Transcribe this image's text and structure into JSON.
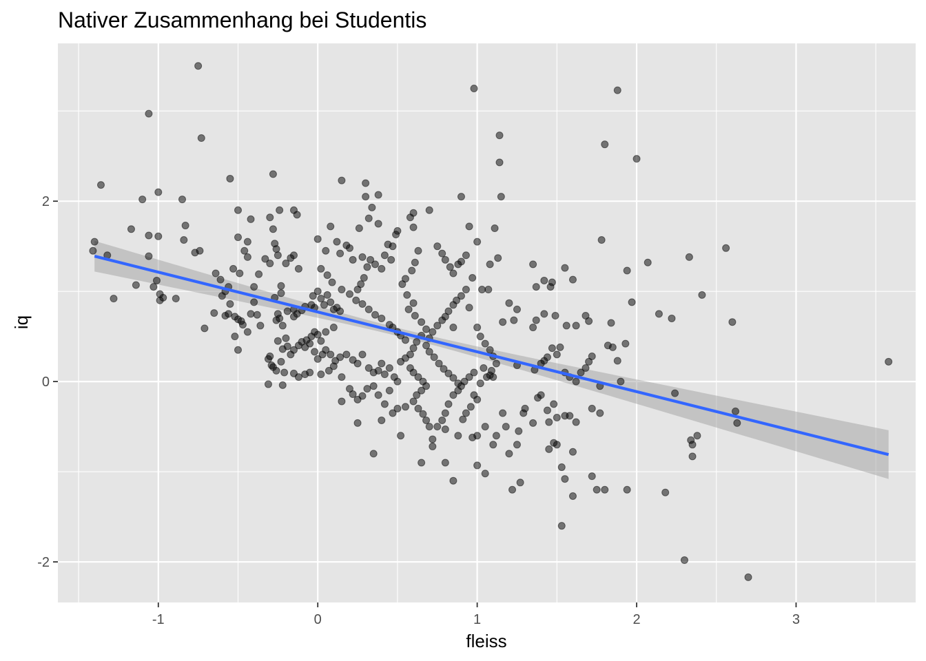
{
  "chart_data": {
    "type": "scatter",
    "title": "Nativer Zusammenhang bei Studentis",
    "xlabel": "fleiss",
    "ylabel": "iq",
    "xlim": [
      -1.63,
      3.75
    ],
    "ylim": [
      -2.45,
      3.75
    ],
    "x_ticks": [
      -1,
      0,
      1,
      2,
      3
    ],
    "x_tick_labels": [
      "-1",
      "0",
      "1",
      "2",
      "3"
    ],
    "y_ticks": [
      -2,
      0,
      2
    ],
    "y_tick_labels": [
      "-2",
      "0",
      "2"
    ],
    "grid": true,
    "legend": "none",
    "colors": {
      "panel_background": "#e5e5e5",
      "grid": "#ffffff",
      "points": "#000000",
      "point_opacity": 0.5,
      "fit_line": "#3366ff",
      "confidence_band": "#999999"
    },
    "fit": {
      "method": "linear",
      "x_range": [
        -1.4,
        3.58
      ],
      "y_start": 1.39,
      "y_end": -0.81,
      "band_halfwidth_start": 0.17,
      "band_halfwidth_end": 0.27,
      "band_halfwidth_min": 0.045,
      "band_center_x": 0.55
    },
    "points": [
      [
        -0.75,
        3.5
      ],
      [
        -1.06,
        2.97
      ],
      [
        -0.73,
        2.7
      ],
      [
        -1.36,
        2.18
      ],
      [
        -1.1,
        2.02
      ],
      [
        -1.0,
        2.1
      ],
      [
        -0.85,
        2.02
      ],
      [
        -1.17,
        1.69
      ],
      [
        -1.06,
        1.62
      ],
      [
        -1.0,
        1.61
      ],
      [
        -0.83,
        1.73
      ],
      [
        -0.84,
        1.57
      ],
      [
        -1.4,
        1.55
      ],
      [
        -1.41,
        1.45
      ],
      [
        -1.32,
        1.4
      ],
      [
        -1.06,
        1.39
      ],
      [
        -0.77,
        1.43
      ],
      [
        -0.74,
        1.45
      ],
      [
        -1.14,
        1.07
      ],
      [
        -1.03,
        1.05
      ],
      [
        -1.01,
        1.12
      ],
      [
        -0.99,
        0.97
      ],
      [
        -0.99,
        0.9
      ],
      [
        -0.97,
        0.93
      ],
      [
        -0.89,
        0.92
      ],
      [
        -1.28,
        0.92
      ],
      [
        -0.71,
        0.59
      ],
      [
        -0.65,
        0.76
      ],
      [
        -0.6,
        0.95
      ],
      [
        -0.58,
        0.73
      ],
      [
        -0.55,
        0.86
      ],
      [
        -0.56,
        0.75
      ],
      [
        -0.52,
        0.72
      ],
      [
        -0.52,
        0.5
      ],
      [
        -0.5,
        0.69
      ],
      [
        -0.48,
        0.67
      ],
      [
        -0.47,
        0.63
      ],
      [
        -0.44,
        0.55
      ],
      [
        -0.42,
        0.75
      ],
      [
        -0.4,
        0.88
      ],
      [
        -0.38,
        0.74
      ],
      [
        -0.36,
        0.62
      ],
      [
        -0.5,
        0.35
      ],
      [
        -0.56,
        1.05
      ],
      [
        -0.53,
        1.25
      ],
      [
        -0.49,
        1.2
      ],
      [
        -0.46,
        1.45
      ],
      [
        -0.44,
        1.38
      ],
      [
        -0.44,
        1.55
      ],
      [
        -0.42,
        1.8
      ],
      [
        -0.5,
        1.9
      ],
      [
        -0.5,
        1.6
      ],
      [
        -0.55,
        2.25
      ],
      [
        -0.61,
        1.13
      ],
      [
        -0.64,
        1.2
      ],
      [
        -0.58,
        1.0
      ],
      [
        -0.4,
        1.05
      ],
      [
        -0.37,
        1.19
      ],
      [
        -0.33,
        1.36
      ],
      [
        -0.3,
        1.31
      ],
      [
        -0.3,
        1.82
      ],
      [
        -0.28,
        1.69
      ],
      [
        -0.27,
        1.53
      ],
      [
        -0.26,
        1.47
      ],
      [
        -0.25,
        1.4
      ],
      [
        -0.28,
        2.3
      ],
      [
        -0.24,
        1.9
      ],
      [
        -0.15,
        1.9
      ],
      [
        -0.13,
        1.85
      ],
      [
        -0.2,
        1.31
      ],
      [
        -0.17,
        1.37
      ],
      [
        -0.15,
        1.4
      ],
      [
        -0.12,
        1.25
      ],
      [
        -0.23,
        0.98
      ],
      [
        -0.23,
        1.06
      ],
      [
        -0.27,
        0.93
      ],
      [
        -0.25,
        0.75
      ],
      [
        -0.24,
        0.7
      ],
      [
        -0.26,
        0.68
      ],
      [
        -0.22,
        0.62
      ],
      [
        -0.19,
        0.78
      ],
      [
        -0.15,
        0.8
      ],
      [
        -0.15,
        0.72
      ],
      [
        -0.13,
        0.75
      ],
      [
        -0.1,
        0.79
      ],
      [
        -0.08,
        0.83
      ],
      [
        -0.04,
        0.85
      ],
      [
        -0.02,
        0.82
      ],
      [
        -0.25,
        0.45
      ],
      [
        -0.22,
        0.36
      ],
      [
        -0.2,
        0.48
      ],
      [
        -0.19,
        0.39
      ],
      [
        -0.17,
        0.3
      ],
      [
        -0.15,
        0.35
      ],
      [
        -0.12,
        0.4
      ],
      [
        -0.1,
        0.44
      ],
      [
        -0.08,
        0.38
      ],
      [
        -0.07,
        0.46
      ],
      [
        -0.05,
        0.42
      ],
      [
        -0.04,
        0.5
      ],
      [
        -0.02,
        0.55
      ],
      [
        0.0,
        0.52
      ],
      [
        -0.3,
        0.28
      ],
      [
        -0.29,
        0.18
      ],
      [
        -0.31,
        0.25
      ],
      [
        -0.28,
        0.16
      ],
      [
        -0.26,
        0.12
      ],
      [
        -0.23,
        0.22
      ],
      [
        -0.21,
        0.1
      ],
      [
        -0.15,
        0.09
      ],
      [
        -0.12,
        0.05
      ],
      [
        -0.08,
        0.08
      ],
      [
        -0.31,
        -0.03
      ],
      [
        -0.22,
        -0.04
      ],
      [
        -0.03,
        0.95
      ],
      [
        0.0,
        1.0
      ],
      [
        0.02,
        0.92
      ],
      [
        0.04,
        0.85
      ],
      [
        0.06,
        0.96
      ],
      [
        0.08,
        0.88
      ],
      [
        0.1,
        0.8
      ],
      [
        0.12,
        0.82
      ],
      [
        0.14,
        0.78
      ],
      [
        0.0,
        1.58
      ],
      [
        0.05,
        1.45
      ],
      [
        0.08,
        1.72
      ],
      [
        0.12,
        1.55
      ],
      [
        0.14,
        1.42
      ],
      [
        0.18,
        1.51
      ],
      [
        0.2,
        1.48
      ],
      [
        0.22,
        1.35
      ],
      [
        0.02,
        1.25
      ],
      [
        0.06,
        1.18
      ],
      [
        0.09,
        1.1
      ],
      [
        0.15,
        1.02
      ],
      [
        0.2,
        0.97
      ],
      [
        0.24,
        0.9
      ],
      [
        0.28,
        0.86
      ],
      [
        0.32,
        0.8
      ],
      [
        0.36,
        0.74
      ],
      [
        0.4,
        0.7
      ],
      [
        0.15,
        2.23
      ],
      [
        0.3,
        2.2
      ],
      [
        0.38,
        2.07
      ],
      [
        0.3,
        2.05
      ],
      [
        0.34,
        1.93
      ],
      [
        0.32,
        1.81
      ],
      [
        0.38,
        1.75
      ],
      [
        0.26,
        1.7
      ],
      [
        0.28,
        1.38
      ],
      [
        0.36,
        1.3
      ],
      [
        0.4,
        1.25
      ],
      [
        0.42,
        1.4
      ],
      [
        0.44,
        1.52
      ],
      [
        0.47,
        1.5
      ],
      [
        0.49,
        1.63
      ],
      [
        0.5,
        1.67
      ],
      [
        0.46,
        1.35
      ],
      [
        0.33,
        1.35
      ],
      [
        0.31,
        1.27
      ],
      [
        0.29,
        1.15
      ],
      [
        0.27,
        1.08
      ],
      [
        0.25,
        1.02
      ],
      [
        0.45,
        0.63
      ],
      [
        0.47,
        0.6
      ],
      [
        0.5,
        0.55
      ],
      [
        0.52,
        0.51
      ],
      [
        0.55,
        0.46
      ],
      [
        0.1,
        0.6
      ],
      [
        0.05,
        0.55
      ],
      [
        0.02,
        0.45
      ],
      [
        -0.02,
        0.33
      ],
      [
        0.0,
        0.25
      ],
      [
        0.03,
        0.3
      ],
      [
        0.05,
        0.35
      ],
      [
        0.08,
        0.3
      ],
      [
        0.11,
        0.23
      ],
      [
        0.14,
        0.27
      ],
      [
        0.18,
        0.3
      ],
      [
        0.22,
        0.24
      ],
      [
        0.25,
        0.2
      ],
      [
        0.28,
        0.3
      ],
      [
        0.32,
        0.15
      ],
      [
        0.35,
        0.1
      ],
      [
        0.38,
        0.12
      ],
      [
        0.4,
        0.2
      ],
      [
        0.42,
        0.08
      ],
      [
        0.45,
        0.15
      ],
      [
        0.48,
        0.05
      ],
      [
        0.5,
        0.0
      ],
      [
        -0.05,
        0.1
      ],
      [
        0.02,
        0.08
      ],
      [
        0.07,
        0.12
      ],
      [
        0.1,
        0.17
      ],
      [
        0.15,
        0.05
      ],
      [
        0.2,
        -0.08
      ],
      [
        0.22,
        -0.14
      ],
      [
        0.25,
        -0.2
      ],
      [
        0.28,
        -0.16
      ],
      [
        0.31,
        -0.08
      ],
      [
        0.35,
        -0.05
      ],
      [
        0.38,
        -0.15
      ],
      [
        0.42,
        -0.25
      ],
      [
        0.45,
        -0.1
      ],
      [
        0.47,
        -0.35
      ],
      [
        0.5,
        -0.3
      ],
      [
        0.15,
        -0.22
      ],
      [
        0.25,
        -0.46
      ],
      [
        0.4,
        -0.43
      ],
      [
        0.52,
        -0.6
      ],
      [
        0.55,
        -0.28
      ],
      [
        0.35,
        -0.8
      ],
      [
        0.58,
        1.82
      ],
      [
        0.6,
        1.87
      ],
      [
        0.6,
        1.71
      ],
      [
        0.63,
        1.45
      ],
      [
        0.61,
        1.32
      ],
      [
        0.59,
        1.23
      ],
      [
        0.55,
        1.14
      ],
      [
        0.53,
        1.08
      ],
      [
        0.56,
        0.96
      ],
      [
        0.6,
        0.87
      ],
      [
        0.57,
        0.8
      ],
      [
        0.61,
        0.73
      ],
      [
        0.65,
        0.66
      ],
      [
        0.68,
        0.58
      ],
      [
        0.65,
        0.51
      ],
      [
        0.62,
        0.44
      ],
      [
        0.6,
        0.37
      ],
      [
        0.58,
        0.3
      ],
      [
        0.55,
        0.26
      ],
      [
        0.52,
        0.22
      ],
      [
        0.58,
        0.15
      ],
      [
        0.6,
        0.1
      ],
      [
        0.63,
        0.05
      ],
      [
        0.66,
        0.0
      ],
      [
        0.68,
        -0.05
      ],
      [
        0.65,
        -0.1
      ],
      [
        0.62,
        -0.15
      ],
      [
        0.6,
        -0.22
      ],
      [
        0.63,
        -0.3
      ],
      [
        0.66,
        -0.36
      ],
      [
        0.68,
        -0.43
      ],
      [
        0.7,
        -0.5
      ],
      [
        0.72,
        -0.64
      ],
      [
        0.75,
        -0.5
      ],
      [
        0.78,
        -0.43
      ],
      [
        0.8,
        -0.35
      ],
      [
        0.82,
        -0.25
      ],
      [
        0.85,
        -0.15
      ],
      [
        0.88,
        -0.1
      ],
      [
        0.9,
        -0.05
      ],
      [
        0.92,
        0.0
      ],
      [
        0.95,
        0.05
      ],
      [
        0.98,
        0.1
      ],
      [
        0.7,
        1.9
      ],
      [
        0.75,
        1.5
      ],
      [
        0.78,
        1.42
      ],
      [
        0.8,
        1.35
      ],
      [
        0.83,
        1.27
      ],
      [
        0.85,
        1.2
      ],
      [
        0.88,
        1.3
      ],
      [
        0.9,
        1.33
      ],
      [
        0.93,
        1.4
      ],
      [
        0.95,
        1.72
      ],
      [
        1.0,
        1.55
      ],
      [
        0.97,
        1.15
      ],
      [
        0.93,
        1.02
      ],
      [
        0.9,
        0.95
      ],
      [
        0.87,
        0.9
      ],
      [
        0.85,
        0.85
      ],
      [
        0.82,
        0.78
      ],
      [
        0.8,
        0.72
      ],
      [
        0.78,
        0.68
      ],
      [
        0.75,
        0.62
      ],
      [
        0.72,
        0.55
      ],
      [
        0.7,
        0.48
      ],
      [
        0.68,
        0.4
      ],
      [
        0.7,
        0.33
      ],
      [
        0.73,
        0.27
      ],
      [
        0.76,
        0.2
      ],
      [
        0.79,
        0.14
      ],
      [
        0.82,
        0.09
      ],
      [
        0.85,
        0.04
      ],
      [
        0.88,
        -0.02
      ],
      [
        0.85,
        0.6
      ],
      [
        0.95,
        0.82
      ],
      [
        0.98,
        3.25
      ],
      [
        0.9,
        2.05
      ],
      [
        1.08,
        1.3
      ],
      [
        1.13,
        1.37
      ],
      [
        1.11,
        1.7
      ],
      [
        1.15,
        2.05
      ],
      [
        1.14,
        2.43
      ],
      [
        1.14,
        2.73
      ],
      [
        1.03,
        1.02
      ],
      [
        1.07,
        1.02
      ],
      [
        1.16,
        0.66
      ],
      [
        1.0,
        0.6
      ],
      [
        1.02,
        0.5
      ],
      [
        1.05,
        0.42
      ],
      [
        1.08,
        0.35
      ],
      [
        1.1,
        0.28
      ],
      [
        1.12,
        0.2
      ],
      [
        1.09,
        0.12
      ],
      [
        1.06,
        0.05
      ],
      [
        1.02,
        -0.02
      ],
      [
        1.04,
        0.15
      ],
      [
        1.08,
        0.07
      ],
      [
        0.98,
        -0.15
      ],
      [
        1.0,
        -0.2
      ],
      [
        0.96,
        -0.28
      ],
      [
        0.93,
        -0.35
      ],
      [
        0.91,
        -0.42
      ],
      [
        1.05,
        -0.5
      ],
      [
        1.0,
        -0.6
      ],
      [
        0.97,
        -0.62
      ],
      [
        0.88,
        -0.6
      ],
      [
        0.8,
        -0.53
      ],
      [
        0.72,
        -0.72
      ],
      [
        0.65,
        -0.9
      ],
      [
        0.8,
        -0.9
      ],
      [
        0.85,
        -1.1
      ],
      [
        1.0,
        -0.93
      ],
      [
        1.1,
        -0.7
      ],
      [
        1.05,
        -1.02
      ],
      [
        1.12,
        -0.6
      ],
      [
        1.16,
        -0.35
      ],
      [
        1.18,
        -0.5
      ],
      [
        1.2,
        -0.8
      ],
      [
        1.22,
        -1.2
      ],
      [
        1.27,
        -1.12
      ],
      [
        1.25,
        -0.7
      ],
      [
        1.26,
        -0.55
      ],
      [
        1.29,
        -0.35
      ],
      [
        1.3,
        -0.3
      ],
      [
        1.35,
        -0.46
      ],
      [
        1.38,
        -0.18
      ],
      [
        1.4,
        -0.15
      ],
      [
        1.44,
        -0.32
      ],
      [
        1.45,
        -0.45
      ],
      [
        1.48,
        -0.25
      ],
      [
        1.5,
        -0.4
      ],
      [
        1.53,
        -0.95
      ],
      [
        1.45,
        -0.75
      ],
      [
        1.48,
        -0.68
      ],
      [
        1.5,
        -0.7
      ],
      [
        1.55,
        -1.08
      ],
      [
        1.53,
        -1.6
      ],
      [
        1.6,
        -1.27
      ],
      [
        1.55,
        -0.38
      ],
      [
        1.58,
        -0.38
      ],
      [
        1.62,
        -0.45
      ],
      [
        1.6,
        -0.78
      ],
      [
        1.72,
        -0.3
      ],
      [
        1.77,
        -0.35
      ],
      [
        1.75,
        -1.2
      ],
      [
        1.72,
        -1.05
      ],
      [
        1.8,
        -1.2
      ],
      [
        1.2,
        0.87
      ],
      [
        1.23,
        0.68
      ],
      [
        1.25,
        0.8
      ],
      [
        1.35,
        1.3
      ],
      [
        1.37,
        1.05
      ],
      [
        1.35,
        0.6
      ],
      [
        1.37,
        0.68
      ],
      [
        1.42,
        0.75
      ],
      [
        1.42,
        1.12
      ],
      [
        1.47,
        1.1
      ],
      [
        1.46,
        1.05
      ],
      [
        1.49,
        0.73
      ],
      [
        1.47,
        0.37
      ],
      [
        1.5,
        0.3
      ],
      [
        1.55,
        0.1
      ],
      [
        1.58,
        0.05
      ],
      [
        1.62,
        0.0
      ],
      [
        1.65,
        0.1
      ],
      [
        1.68,
        0.15
      ],
      [
        1.7,
        0.22
      ],
      [
        1.72,
        0.28
      ],
      [
        1.44,
        0.27
      ],
      [
        1.42,
        0.23
      ],
      [
        1.4,
        0.2
      ],
      [
        1.36,
        0.13
      ],
      [
        1.52,
        0.38
      ],
      [
        1.55,
        1.26
      ],
      [
        1.6,
        1.13
      ],
      [
        1.56,
        0.62
      ],
      [
        1.62,
        0.62
      ],
      [
        1.68,
        0.73
      ],
      [
        1.7,
        0.67
      ],
      [
        1.77,
        -0.05
      ],
      [
        1.78,
        1.57
      ],
      [
        1.82,
        0.4
      ],
      [
        1.85,
        0.38
      ],
      [
        1.88,
        0.23
      ],
      [
        1.9,
        0.0
      ],
      [
        1.93,
        0.42
      ],
      [
        1.94,
        1.23
      ],
      [
        1.97,
        0.88
      ],
      [
        1.8,
        2.63
      ],
      [
        1.88,
        3.23
      ],
      [
        2.0,
        2.47
      ],
      [
        2.07,
        1.32
      ],
      [
        2.14,
        0.75
      ],
      [
        2.22,
        0.7
      ],
      [
        2.24,
        -0.13
      ],
      [
        2.18,
        -1.23
      ],
      [
        2.3,
        -1.98
      ],
      [
        2.33,
        1.38
      ],
      [
        2.34,
        -0.65
      ],
      [
        2.35,
        -0.7
      ],
      [
        2.38,
        -0.6
      ],
      [
        2.35,
        -0.83
      ],
      [
        2.41,
        0.96
      ],
      [
        2.56,
        1.48
      ],
      [
        2.6,
        0.66
      ],
      [
        2.62,
        -0.33
      ],
      [
        2.63,
        -0.46
      ],
      [
        2.7,
        -2.17
      ],
      [
        3.58,
        0.22
      ],
      [
        1.94,
        -1.2
      ],
      [
        1.84,
        0.65
      ],
      [
        1.25,
        0.18
      ],
      [
        1.1,
        0.05
      ]
    ]
  }
}
